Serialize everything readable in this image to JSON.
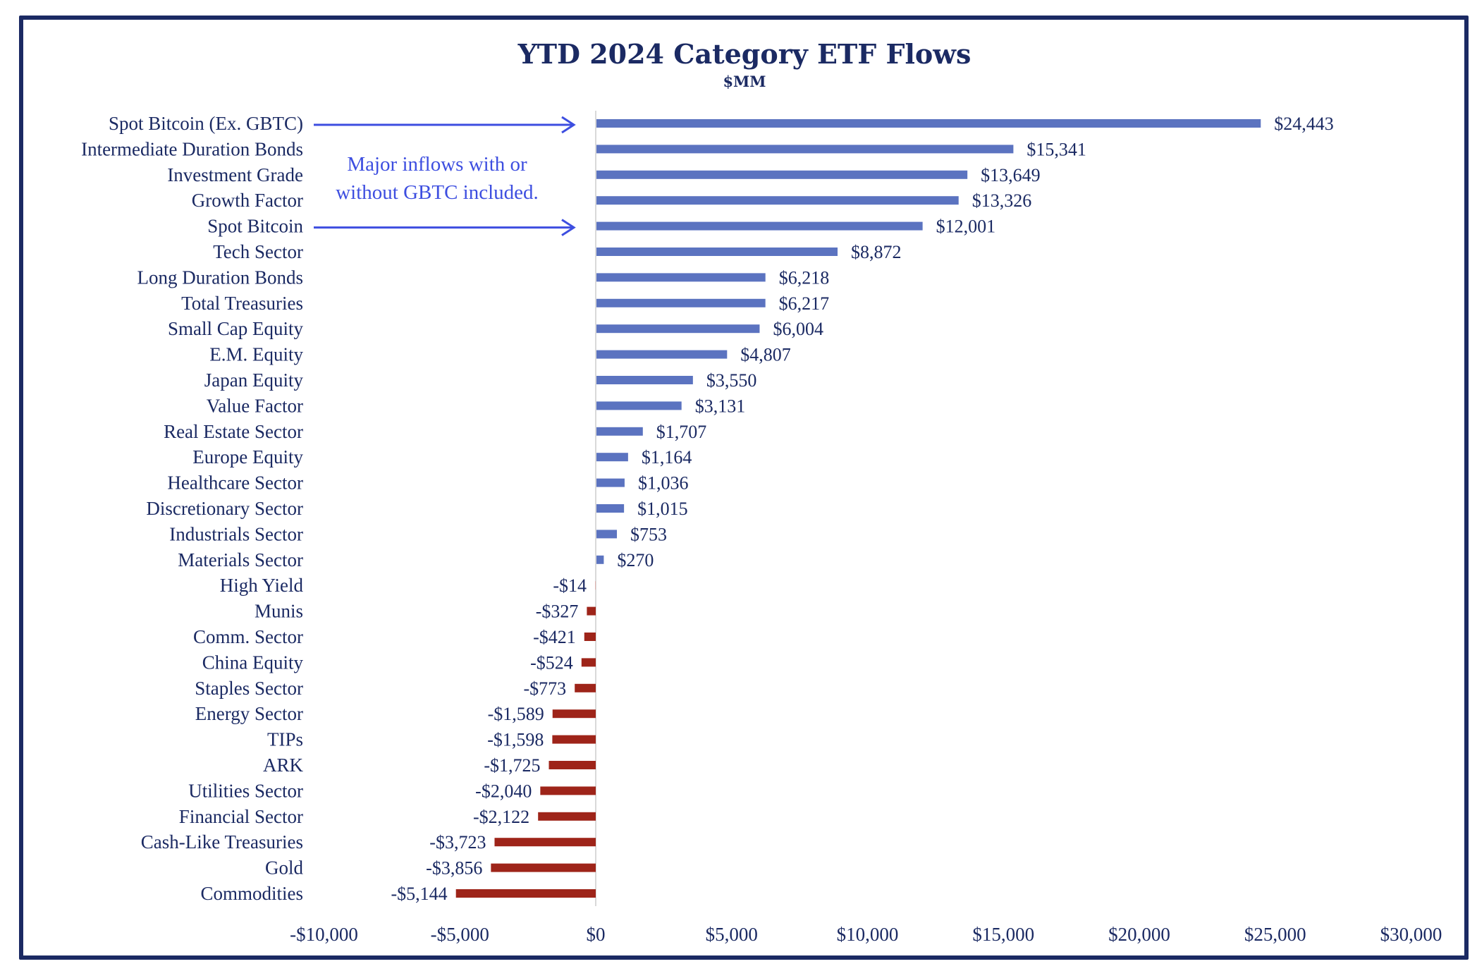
{
  "chart_data": {
    "type": "bar",
    "orientation": "horizontal",
    "title": "YTD 2024 Category ETF Flows",
    "subtitle": "$MM",
    "xlabel": "",
    "ylabel": "",
    "xlim": [
      -10000,
      30000
    ],
    "grid": false,
    "colors": {
      "positive": "#5b73c0",
      "negative": "#9e2419",
      "text": "#1b2a63",
      "annotation": "#3d4ee0",
      "axis": "#d9d9d9",
      "frame": "#1b2a63"
    },
    "x_ticks": [
      {
        "value": -10000,
        "label": "-$10,000"
      },
      {
        "value": -5000,
        "label": "-$5,000"
      },
      {
        "value": 0,
        "label": "$0"
      },
      {
        "value": 5000,
        "label": "$5,000"
      },
      {
        "value": 10000,
        "label": "$10,000"
      },
      {
        "value": 15000,
        "label": "$15,000"
      },
      {
        "value": 20000,
        "label": "$20,000"
      },
      {
        "value": 25000,
        "label": "$25,000"
      },
      {
        "value": 30000,
        "label": "$30,000"
      }
    ],
    "categories": [
      "Spot Bitcoin (Ex. GBTC)",
      "Intermediate Duration Bonds",
      "Investment Grade",
      "Growth Factor",
      "Spot Bitcoin",
      "Tech Sector",
      "Long Duration Bonds",
      "Total Treasuries",
      "Small Cap Equity",
      "E.M. Equity",
      "Japan Equity",
      "Value Factor",
      "Real Estate Sector",
      "Europe Equity",
      "Healthcare Sector",
      "Discretionary Sector",
      "Industrials Sector",
      "Materials Sector",
      "High Yield",
      "Munis",
      "Comm. Sector",
      "China Equity",
      "Staples Sector",
      "Energy Sector",
      "TIPs",
      "ARK",
      "Utilities Sector",
      "Financial Sector",
      "Cash-Like Treasuries",
      "Gold",
      "Commodities"
    ],
    "values": [
      24443,
      15341,
      13649,
      13326,
      12001,
      8872,
      6218,
      6217,
      6004,
      4807,
      3550,
      3131,
      1707,
      1164,
      1036,
      1015,
      753,
      270,
      -14,
      -327,
      -421,
      -524,
      -773,
      -1589,
      -1598,
      -1725,
      -2040,
      -2122,
      -3723,
      -3856,
      -5144
    ],
    "value_labels": [
      "$24,443",
      "$15,341",
      "$13,649",
      "$13,326",
      "$12,001",
      "$8,872",
      "$6,218",
      "$6,217",
      "$6,004",
      "$4,807",
      "$3,550",
      "$3,131",
      "$1,707",
      "$1,164",
      "$1,036",
      "$1,015",
      "$753",
      "$270",
      "-$14",
      "-$327",
      "-$421",
      "-$524",
      "-$773",
      "-$1,589",
      "-$1,598",
      "-$1,725",
      "-$2,040",
      "-$2,122",
      "-$3,723",
      "-$3,856",
      "-$5,144"
    ],
    "annotation": {
      "lines": [
        "Major inflows with or",
        "without GBTC included."
      ],
      "arrow_targets": [
        "Spot Bitcoin (Ex. GBTC)",
        "Spot Bitcoin"
      ]
    }
  }
}
